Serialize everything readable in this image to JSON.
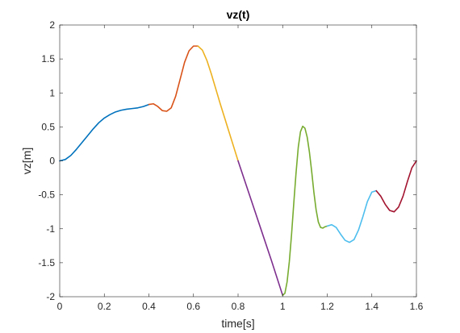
{
  "chart_data": {
    "type": "line",
    "title": "vz(t)",
    "xlabel": "time[s]",
    "ylabel": "vz[m]",
    "xlim": [
      0,
      1.6
    ],
    "ylim": [
      -2,
      2
    ],
    "xticks": [
      0,
      0.2,
      0.4,
      0.6,
      0.8,
      1,
      1.2,
      1.4,
      1.6
    ],
    "xtick_labels": [
      "0",
      "0.2",
      "0.4",
      "0.6",
      "0.8",
      "1",
      "1.2",
      "1.4",
      "1.6"
    ],
    "yticks": [
      -2,
      -1.5,
      -1,
      -0.5,
      0,
      0.5,
      1,
      1.5,
      2
    ],
    "ytick_labels": [
      "-2",
      "-1.5",
      "-1",
      "-0.5",
      "0",
      "0.5",
      "1",
      "1.5",
      "2"
    ],
    "grid": false,
    "box": true,
    "series": [
      {
        "color": "#0072BD",
        "x": [
          0,
          0.025,
          0.05,
          0.075,
          0.1,
          0.125,
          0.15,
          0.175,
          0.2,
          0.225,
          0.25,
          0.275,
          0.3,
          0.325,
          0.35,
          0.375,
          0.4
        ],
        "y": [
          0,
          0.02,
          0.08,
          0.17,
          0.27,
          0.37,
          0.47,
          0.56,
          0.63,
          0.68,
          0.72,
          0.745,
          0.76,
          0.77,
          0.78,
          0.8,
          0.83
        ]
      },
      {
        "color": "#D95319",
        "x": [
          0.4,
          0.42,
          0.44,
          0.46,
          0.48,
          0.5,
          0.52,
          0.54,
          0.56,
          0.58,
          0.6,
          0.62
        ],
        "y": [
          0.83,
          0.84,
          0.8,
          0.74,
          0.73,
          0.78,
          0.95,
          1.2,
          1.45,
          1.62,
          1.69,
          1.69
        ]
      },
      {
        "color": "#EDB120",
        "x": [
          0.62,
          0.64,
          0.66,
          0.68,
          0.7,
          0.72,
          0.74,
          0.76,
          0.78,
          0.8
        ],
        "y": [
          1.69,
          1.63,
          1.48,
          1.28,
          1.06,
          0.84,
          0.63,
          0.42,
          0.21,
          0
        ]
      },
      {
        "color": "#7E2F8E",
        "x": [
          0.8,
          0.85,
          0.9,
          0.95,
          1.0
        ],
        "y": [
          0,
          -0.49,
          -0.98,
          -1.47,
          -1.98
        ]
      },
      {
        "color": "#77AC30",
        "x": [
          1.0,
          1.01,
          1.02,
          1.03,
          1.04,
          1.05,
          1.06,
          1.07,
          1.08,
          1.09,
          1.1,
          1.11,
          1.12,
          1.13,
          1.14,
          1.15,
          1.16,
          1.17,
          1.18,
          1.19,
          1.2
        ],
        "y": [
          -1.98,
          -1.95,
          -1.78,
          -1.48,
          -1.08,
          -0.62,
          -0.18,
          0.2,
          0.43,
          0.51,
          0.48,
          0.35,
          0.13,
          -0.15,
          -0.46,
          -0.72,
          -0.9,
          -0.98,
          -0.99,
          -0.97,
          -0.96
        ]
      },
      {
        "color": "#4DBEEE",
        "x": [
          1.2,
          1.22,
          1.24,
          1.26,
          1.28,
          1.3,
          1.32,
          1.34,
          1.36,
          1.38,
          1.4,
          1.42
        ],
        "y": [
          -0.96,
          -0.94,
          -0.98,
          -1.08,
          -1.17,
          -1.2,
          -1.16,
          -1.02,
          -0.82,
          -0.6,
          -0.46,
          -0.44
        ]
      },
      {
        "color": "#A2142F",
        "x": [
          1.42,
          1.44,
          1.46,
          1.48,
          1.5,
          1.52,
          1.54,
          1.56,
          1.58,
          1.6
        ],
        "y": [
          -0.44,
          -0.52,
          -0.64,
          -0.73,
          -0.75,
          -0.68,
          -0.52,
          -0.3,
          -0.1,
          0
        ]
      }
    ]
  }
}
